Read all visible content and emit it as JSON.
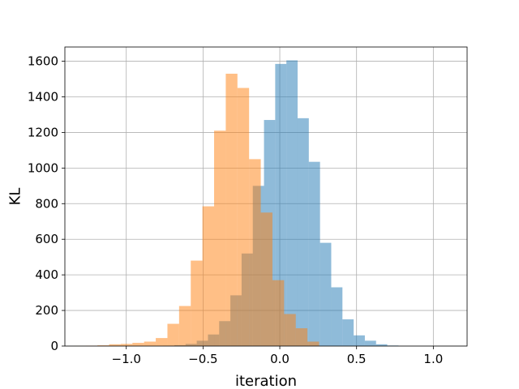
{
  "chart_data": {
    "type": "bar",
    "subtype": "overlaid-histogram",
    "title": "",
    "xlabel": "iteration",
    "ylabel": "KL",
    "xlim": [
      -1.4,
      1.22
    ],
    "ylim": [
      0,
      1680
    ],
    "grid": true,
    "x_ticks": [
      -1.0,
      -0.5,
      0.0,
      0.5,
      1.0
    ],
    "x_tick_labels": [
      "−1.0",
      "−0.5",
      "0.0",
      "0.5",
      "1.0"
    ],
    "y_ticks": [
      0,
      200,
      400,
      600,
      800,
      1000,
      1200,
      1400,
      1600
    ],
    "y_tick_labels": [
      "0",
      "200",
      "400",
      "600",
      "800",
      "1000",
      "1200",
      "1400",
      "1600"
    ],
    "series": [
      {
        "color": "#1f77b4",
        "opacity": 0.5,
        "bin_edges": [
          -0.76,
          -0.687,
          -0.614,
          -0.541,
          -0.468,
          -0.395,
          -0.322,
          -0.249,
          -0.176,
          -0.103,
          -0.03,
          0.043,
          0.116,
          0.189,
          0.262,
          0.335,
          0.408,
          0.481,
          0.554,
          0.627,
          0.7,
          0.773
        ],
        "counts": [
          2,
          5,
          12,
          30,
          65,
          140,
          285,
          520,
          900,
          1270,
          1585,
          1605,
          1280,
          1035,
          580,
          330,
          150,
          60,
          30,
          10,
          3
        ]
      },
      {
        "color": "#ff7f0e",
        "opacity": 0.5,
        "bin_edges": [
          -1.34,
          -1.264,
          -1.188,
          -1.112,
          -1.036,
          -0.96,
          -0.884,
          -0.808,
          -0.732,
          -0.656,
          -0.58,
          -0.504,
          -0.428,
          -0.352,
          -0.276,
          -0.2,
          -0.124,
          -0.048,
          0.028,
          0.104,
          0.18,
          0.256
        ],
        "counts": [
          1,
          2,
          4,
          10,
          12,
          18,
          25,
          45,
          125,
          225,
          480,
          785,
          1210,
          1530,
          1450,
          1050,
          750,
          370,
          180,
          100,
          25
        ]
      }
    ]
  }
}
